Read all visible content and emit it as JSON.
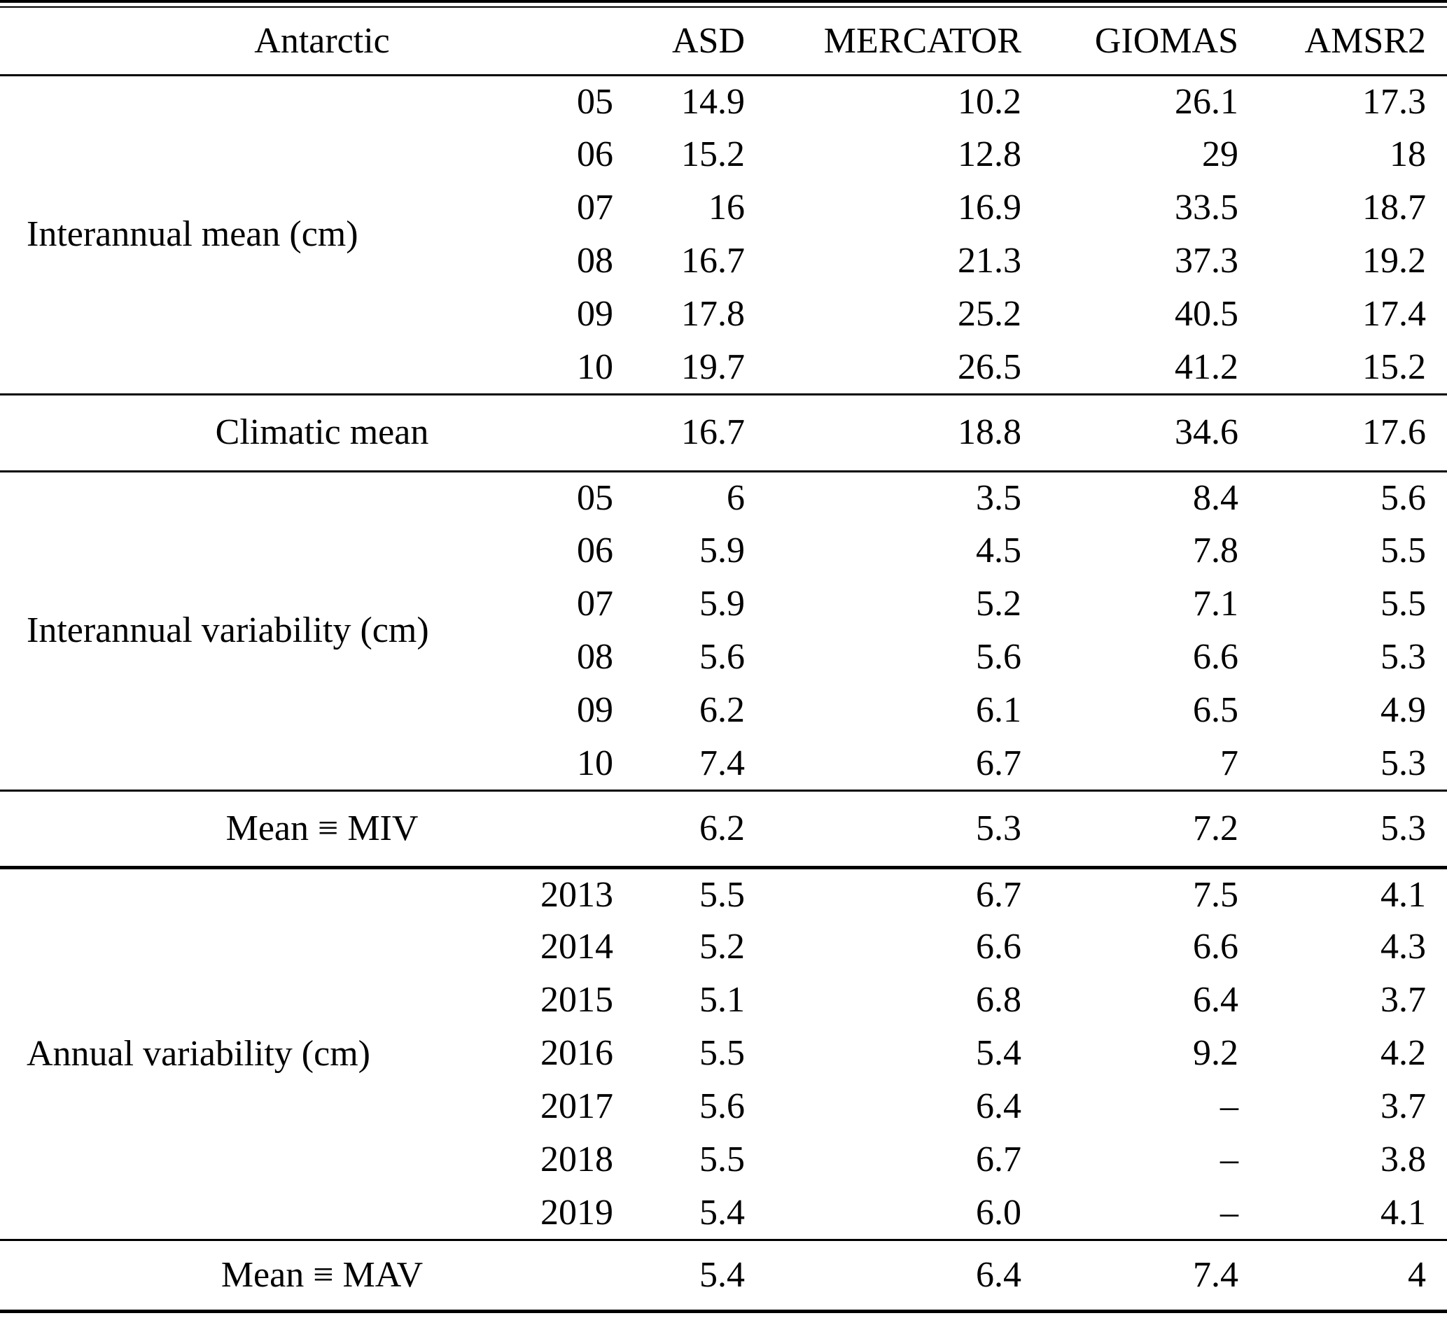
{
  "table": {
    "region_label": "Antarctic",
    "columns": [
      "ASD",
      "MERCATOR",
      "GIOMAS",
      "AMSR2"
    ],
    "missing_value_symbol": "–",
    "sections": [
      {
        "label": "Interannual mean (cm)",
        "rows": [
          {
            "key": "05",
            "values": [
              "14.9",
              "10.2",
              "26.1",
              "17.3"
            ]
          },
          {
            "key": "06",
            "values": [
              "15.2",
              "12.8",
              "29",
              "18"
            ]
          },
          {
            "key": "07",
            "values": [
              "16",
              "16.9",
              "33.5",
              "18.7"
            ]
          },
          {
            "key": "08",
            "values": [
              "16.7",
              "21.3",
              "37.3",
              "19.2"
            ]
          },
          {
            "key": "09",
            "values": [
              "17.8",
              "25.2",
              "40.5",
              "17.4"
            ]
          },
          {
            "key": "10",
            "values": [
              "19.7",
              "26.5",
              "41.2",
              "15.2"
            ]
          }
        ],
        "summary": {
          "label": "Climatic mean",
          "values": [
            "16.7",
            "18.8",
            "34.6",
            "17.6"
          ]
        }
      },
      {
        "label": "Interannual variability (cm)",
        "rows": [
          {
            "key": "05",
            "values": [
              "6",
              "3.5",
              "8.4",
              "5.6"
            ]
          },
          {
            "key": "06",
            "values": [
              "5.9",
              "4.5",
              "7.8",
              "5.5"
            ]
          },
          {
            "key": "07",
            "values": [
              "5.9",
              "5.2",
              "7.1",
              "5.5"
            ]
          },
          {
            "key": "08",
            "values": [
              "5.6",
              "5.6",
              "6.6",
              "5.3"
            ]
          },
          {
            "key": "09",
            "values": [
              "6.2",
              "6.1",
              "6.5",
              "4.9"
            ]
          },
          {
            "key": "10",
            "values": [
              "7.4",
              "6.7",
              "7",
              "5.3"
            ]
          }
        ],
        "summary": {
          "label": "Mean ≡ MIV",
          "values": [
            "6.2",
            "5.3",
            "7.2",
            "5.3"
          ]
        }
      },
      {
        "label": "Annual variability (cm)",
        "rows": [
          {
            "key": "2013",
            "values": [
              "5.5",
              "6.7",
              "7.5",
              "4.1"
            ]
          },
          {
            "key": "2014",
            "values": [
              "5.2",
              "6.6",
              "6.6",
              "4.3"
            ]
          },
          {
            "key": "2015",
            "values": [
              "5.1",
              "6.8",
              "6.4",
              "3.7"
            ]
          },
          {
            "key": "2016",
            "values": [
              "5.5",
              "5.4",
              "9.2",
              "4.2"
            ]
          },
          {
            "key": "2017",
            "values": [
              "5.6",
              "6.4",
              "–",
              "3.7"
            ]
          },
          {
            "key": "2018",
            "values": [
              "5.5",
              "6.7",
              "–",
              "3.8"
            ]
          },
          {
            "key": "2019",
            "values": [
              "5.4",
              "6.0",
              "–",
              "4.1"
            ]
          }
        ],
        "summary": {
          "label": "Mean ≡ MAV",
          "values": [
            "5.4",
            "6.4",
            "7.4",
            "4"
          ]
        }
      }
    ]
  }
}
